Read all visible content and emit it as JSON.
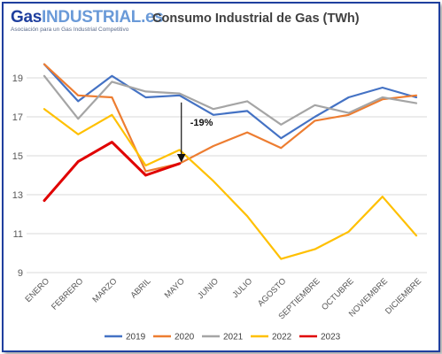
{
  "logo": {
    "text_main": "Gas",
    "text_accent": "INDUSTRIAL.es",
    "tagline": "Asociación para un Gas Industrial Competitivo"
  },
  "chart_data": {
    "type": "line",
    "title": "Consumo Industrial de Gas (TWh)",
    "xlabel": "",
    "ylabel": "",
    "categories": [
      "ENERO",
      "FEBRERO",
      "MARZO",
      "ABRIL",
      "MAYO",
      "JUNIO",
      "JULIO",
      "AGOSTO",
      "SEPTIEMBRE",
      "OCTUBRE",
      "NOVIEMBRE",
      "DICIEMBRE"
    ],
    "yticks": [
      9,
      11,
      13,
      15,
      17,
      19
    ],
    "ylim": [
      9,
      20.5
    ],
    "grid": true,
    "legend_position": "bottom",
    "series": [
      {
        "name": "2019",
        "color": "#4472c4",
        "values": [
          19.7,
          17.8,
          19.1,
          18.0,
          18.1,
          17.1,
          17.3,
          15.9,
          17.0,
          18.0,
          18.5,
          18.0
        ]
      },
      {
        "name": "2020",
        "color": "#ed7d31",
        "values": [
          19.7,
          18.1,
          18.0,
          14.2,
          14.6,
          15.5,
          16.2,
          15.4,
          16.8,
          17.1,
          17.9,
          18.1
        ]
      },
      {
        "name": "2021",
        "color": "#a5a5a5",
        "values": [
          19.1,
          16.9,
          18.8,
          18.3,
          18.2,
          17.4,
          17.8,
          16.6,
          17.6,
          17.2,
          18.0,
          17.7
        ]
      },
      {
        "name": "2022",
        "color": "#ffc000",
        "values": [
          17.4,
          16.1,
          17.1,
          14.5,
          15.3,
          13.7,
          11.9,
          9.7,
          10.2,
          11.1,
          12.9,
          10.9
        ]
      },
      {
        "name": "2023",
        "color": "#e00000",
        "values": [
          12.7,
          14.7,
          15.7,
          14.0,
          14.6,
          null,
          null,
          null,
          null,
          null,
          null,
          null
        ]
      }
    ],
    "annotations": [
      {
        "text": "-19%",
        "category": "MAYO",
        "from_value": 18.1,
        "to_value": 14.6
      }
    ]
  }
}
